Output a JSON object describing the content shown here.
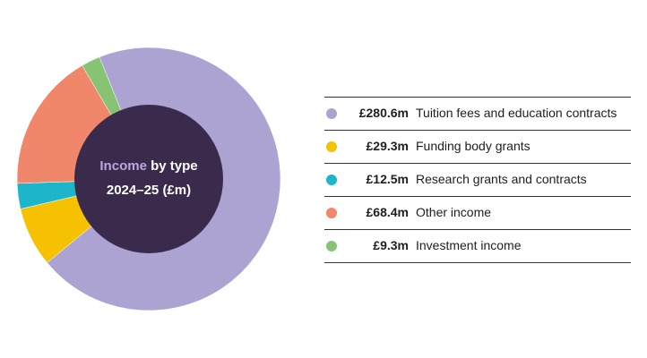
{
  "chart_data": {
    "type": "pie",
    "title": "Income by type 2024–25 (£m)",
    "title_parts": {
      "accent": "Income",
      "rest_line1": " by type",
      "line2": "2024–25 (£m)"
    },
    "categories": [
      "Tuition fees and education contracts",
      "Funding body grants",
      "Research grants and contracts",
      "Other income",
      "Investment income"
    ],
    "values": [
      280.6,
      29.3,
      12.5,
      68.4,
      9.3
    ],
    "value_labels": [
      "£280.6m",
      "£29.3m",
      "£12.5m",
      "£68.4m",
      "£9.3m"
    ],
    "colors": [
      "#ada3d3",
      "#f6c200",
      "#1db5c9",
      "#f0866a",
      "#86c474"
    ],
    "center_color": "#3a2b4c",
    "legend_placement": "right",
    "donut": true
  }
}
